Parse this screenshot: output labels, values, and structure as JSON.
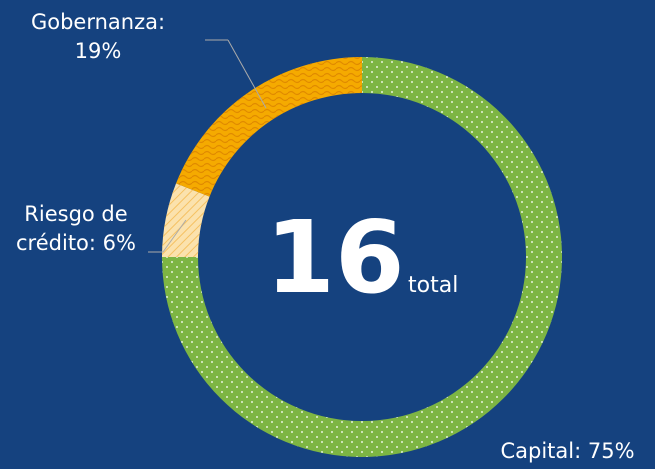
{
  "chart_data": {
    "type": "donut",
    "categories": [
      "Capital",
      "Riesgo de crédito",
      "Gobernanza"
    ],
    "values": [
      75,
      6,
      19
    ],
    "value_labels": [
      "Capital: 75%",
      "Riesgo de crédito: 6%",
      "Gobernanza: 19%"
    ],
    "colors": [
      "#7db543",
      "#fbe2ad",
      "#f5aa00"
    ],
    "total": 16,
    "total_label": "total"
  }
}
